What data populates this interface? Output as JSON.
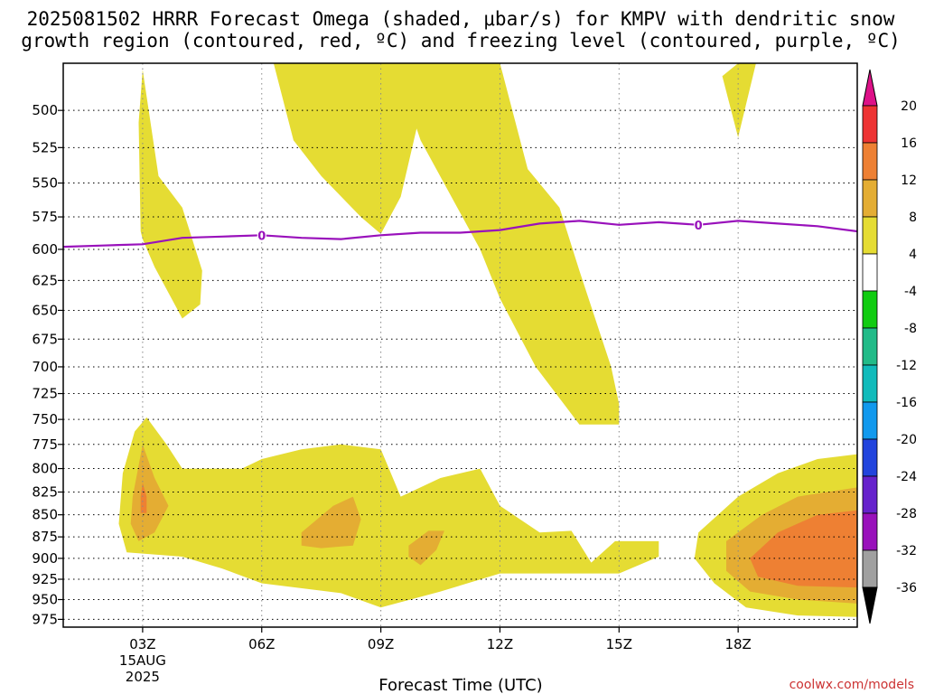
{
  "title": {
    "line1": "2025081502 HRRR Forecast Omega (shaded, μbar/s) for KMPV with dendritic snow",
    "line2": "growth region (contoured, red, ºC) and freezing level (contoured, purple, ºC)"
  },
  "credit": "coolwx.com/models",
  "chart_data": {
    "type": "heatmap",
    "xlabel": "Forecast Time (UTC)",
    "ylabel": "",
    "x_range_hours": [
      1,
      21
    ],
    "y_range_hpa": [
      470,
      985
    ],
    "y_scale": "log-pressure (inverted)",
    "grid": true,
    "x_ticks": [
      {
        "hour": 3,
        "label": "03Z",
        "sub1": "15AUG",
        "sub2": "2025"
      },
      {
        "hour": 6,
        "label": "06Z",
        "sub1": "",
        "sub2": ""
      },
      {
        "hour": 9,
        "label": "09Z",
        "sub1": "",
        "sub2": ""
      },
      {
        "hour": 12,
        "label": "12Z",
        "sub1": "",
        "sub2": ""
      },
      {
        "hour": 15,
        "label": "15Z",
        "sub1": "",
        "sub2": ""
      },
      {
        "hour": 18,
        "label": "18Z",
        "sub1": "",
        "sub2": ""
      }
    ],
    "y_ticks": [
      500,
      525,
      550,
      575,
      600,
      625,
      650,
      675,
      700,
      725,
      750,
      775,
      800,
      825,
      850,
      875,
      900,
      925,
      950,
      975
    ],
    "colorbar": {
      "labels": [
        "20",
        "16",
        "12",
        "8",
        "4",
        "-4",
        "-8",
        "-12",
        "-16",
        "-20",
        "-24",
        "-28",
        "-32",
        "-36"
      ],
      "bins": [
        {
          "from": 16,
          "to": 20,
          "color": "#ee3333"
        },
        {
          "from": 12,
          "to": 16,
          "color": "#ee8033"
        },
        {
          "from": 8,
          "to": 12,
          "color": "#e4ad33"
        },
        {
          "from": 4,
          "to": 8,
          "color": "#e5dc33"
        },
        {
          "from": -4,
          "to": 4,
          "color": "#ffffff"
        },
        {
          "from": -8,
          "to": -4,
          "color": "#11cc11"
        },
        {
          "from": -12,
          "to": -8,
          "color": "#22bb88"
        },
        {
          "from": -16,
          "to": -12,
          "color": "#11bbbb"
        },
        {
          "from": -20,
          "to": -16,
          "color": "#1199ee"
        },
        {
          "from": -24,
          "to": -20,
          "color": "#2244dd"
        },
        {
          "from": -28,
          "to": -24,
          "color": "#6622cc"
        },
        {
          "from": -32,
          "to": -28,
          "color": "#9911bb"
        },
        {
          "from": -36,
          "to": -32,
          "color": "#a0a0a0"
        }
      ],
      "above_color": "#dd1188",
      "below_color": "#000000"
    },
    "shaded_regions": [
      {
        "level": "4-8",
        "color": "#e5dc33",
        "points": [
          [
            2.95,
            586
          ],
          [
            2.9,
            508
          ],
          [
            3.0,
            474
          ],
          [
            3.4,
            545
          ],
          [
            4.0,
            568
          ],
          [
            4.5,
            617
          ],
          [
            4.45,
            645
          ],
          [
            4.0,
            657
          ],
          [
            3.3,
            614
          ],
          [
            3.0,
            592
          ]
        ]
      },
      {
        "level": "4-8",
        "color": "#e5dc33",
        "points": [
          [
            6.3,
            470
          ],
          [
            11.4,
            470
          ],
          [
            12.0,
            470
          ],
          [
            12.7,
            540
          ],
          [
            13.5,
            568
          ],
          [
            14.0,
            617
          ],
          [
            14.8,
            700
          ],
          [
            15.0,
            735
          ],
          [
            15.0,
            755
          ],
          [
            14.0,
            755
          ],
          [
            12.9,
            700
          ],
          [
            12.0,
            640
          ],
          [
            11.5,
            600
          ],
          [
            10.0,
            520
          ],
          [
            9.9,
            512
          ],
          [
            9.5,
            560
          ],
          [
            9.0,
            588
          ],
          [
            8.5,
            575
          ],
          [
            7.5,
            545
          ],
          [
            6.8,
            520
          ]
        ]
      },
      {
        "level": "4-8",
        "color": "#e5dc33",
        "points": [
          [
            18.0,
            470
          ],
          [
            18.45,
            470
          ],
          [
            18.0,
            518
          ],
          [
            17.6,
            478
          ]
        ]
      },
      {
        "level": "4-8",
        "color": "#e5dc33",
        "points": [
          [
            2.5,
            805
          ],
          [
            2.8,
            762
          ],
          [
            3.1,
            748
          ],
          [
            3.6,
            775
          ],
          [
            4.0,
            800
          ],
          [
            5.5,
            800
          ],
          [
            6.0,
            790
          ],
          [
            7.0,
            780
          ],
          [
            8.0,
            775
          ],
          [
            9.0,
            780
          ],
          [
            9.5,
            830
          ],
          [
            10.5,
            810
          ],
          [
            11.5,
            800
          ],
          [
            12.0,
            840
          ],
          [
            13.0,
            870
          ],
          [
            13.8,
            868
          ],
          [
            14.3,
            905
          ],
          [
            14.9,
            880
          ],
          [
            16.0,
            880
          ],
          [
            16.0,
            898
          ],
          [
            15.0,
            918
          ],
          [
            12.0,
            918
          ],
          [
            10.5,
            940
          ],
          [
            9.0,
            960
          ],
          [
            8.0,
            942
          ],
          [
            6.0,
            930
          ],
          [
            5.0,
            912
          ],
          [
            4.0,
            898
          ],
          [
            2.6,
            893
          ],
          [
            2.4,
            860
          ]
        ]
      },
      {
        "level": "4-8",
        "color": "#e5dc33",
        "points": [
          [
            17.0,
            870
          ],
          [
            18.0,
            830
          ],
          [
            19.0,
            805
          ],
          [
            20.0,
            790
          ],
          [
            21.0,
            785
          ],
          [
            21.0,
            972
          ],
          [
            19.5,
            970
          ],
          [
            18.2,
            960
          ],
          [
            17.4,
            930
          ],
          [
            16.9,
            900
          ]
        ]
      },
      {
        "level": "8-12",
        "color": "#e4ad33",
        "points": [
          [
            2.75,
            830
          ],
          [
            3.0,
            775
          ],
          [
            3.3,
            810
          ],
          [
            3.65,
            840
          ],
          [
            3.3,
            870
          ],
          [
            2.9,
            880
          ],
          [
            2.7,
            860
          ]
        ]
      },
      {
        "level": "8-12",
        "color": "#e4ad33",
        "points": [
          [
            7.0,
            870
          ],
          [
            7.8,
            840
          ],
          [
            8.3,
            830
          ],
          [
            8.5,
            855
          ],
          [
            8.3,
            885
          ],
          [
            7.5,
            888
          ],
          [
            7.0,
            885
          ]
        ]
      },
      {
        "level": "8-12",
        "color": "#e4ad33",
        "points": [
          [
            9.7,
            885
          ],
          [
            10.2,
            868
          ],
          [
            10.6,
            868
          ],
          [
            10.4,
            890
          ],
          [
            10.0,
            908
          ],
          [
            9.7,
            898
          ]
        ]
      },
      {
        "level": "8-12",
        "color": "#e4ad33",
        "points": [
          [
            17.7,
            880
          ],
          [
            18.6,
            850
          ],
          [
            19.5,
            830
          ],
          [
            21.0,
            820
          ],
          [
            21.0,
            955
          ],
          [
            19.5,
            950
          ],
          [
            18.3,
            940
          ],
          [
            17.7,
            915
          ]
        ]
      },
      {
        "level": "12-16",
        "color": "#ee8033",
        "points": [
          [
            3.0,
            815
          ],
          [
            3.1,
            830
          ],
          [
            3.1,
            848
          ],
          [
            2.95,
            848
          ],
          [
            2.95,
            830
          ]
        ]
      },
      {
        "level": "12-16",
        "color": "#ee8033",
        "points": [
          [
            18.3,
            900
          ],
          [
            19.0,
            870
          ],
          [
            20.0,
            850
          ],
          [
            21.0,
            845
          ],
          [
            21.0,
            935
          ],
          [
            19.5,
            933
          ],
          [
            18.5,
            922
          ]
        ]
      }
    ],
    "freezing_level": {
      "label": "0",
      "points": [
        [
          1,
          598
        ],
        [
          2,
          597
        ],
        [
          3,
          596
        ],
        [
          4,
          591
        ],
        [
          5,
          590
        ],
        [
          6,
          589
        ],
        [
          7,
          591
        ],
        [
          8,
          592
        ],
        [
          9,
          589
        ],
        [
          10,
          587
        ],
        [
          11,
          587
        ],
        [
          12,
          585
        ],
        [
          13,
          580
        ],
        [
          14,
          578
        ],
        [
          15,
          581
        ],
        [
          16,
          579
        ],
        [
          17,
          581
        ],
        [
          18,
          578
        ],
        [
          19,
          580
        ],
        [
          20,
          582
        ],
        [
          21,
          586
        ]
      ],
      "label_hours": [
        6,
        17
      ]
    },
    "ground": {
      "color": "#a0522d",
      "hpa": 985
    }
  }
}
